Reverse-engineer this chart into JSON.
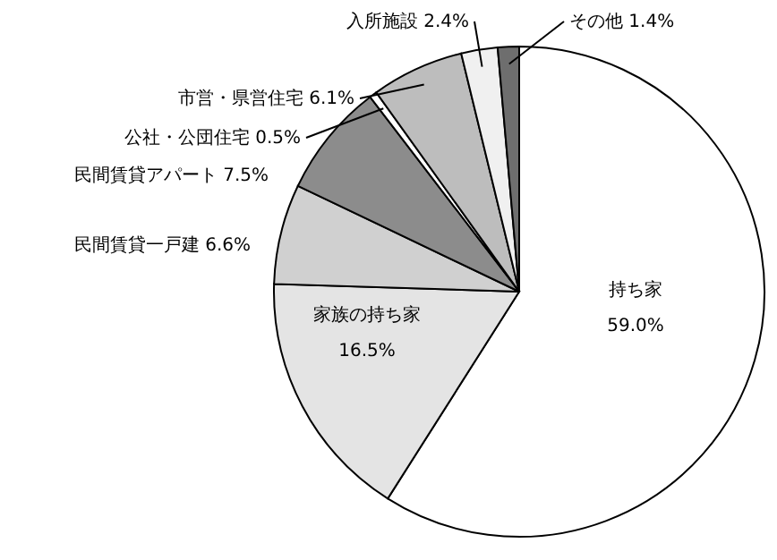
{
  "chart_data": {
    "type": "pie",
    "categories": [
      "持ち家",
      "家族の持ち家",
      "民間賃貸一戸建",
      "民間賃貸アパート",
      "公社・公団住宅",
      "市営・県営住宅",
      "入所施設",
      "その他"
    ],
    "values": [
      59.0,
      16.5,
      6.6,
      7.5,
      0.5,
      6.1,
      2.4,
      1.4
    ],
    "value_labels": [
      "59.0%",
      "16.5%",
      "6.6%",
      "7.5%",
      "0.5%",
      "6.1%",
      "2.4%",
      "1.4%"
    ],
    "colors": [
      "#ffffff",
      "#e4e4e4",
      "#d0d0d0",
      "#8c8c8c",
      "#ffffff",
      "#bdbdbd",
      "#f0f0f0",
      "#6e6e6e"
    ]
  }
}
